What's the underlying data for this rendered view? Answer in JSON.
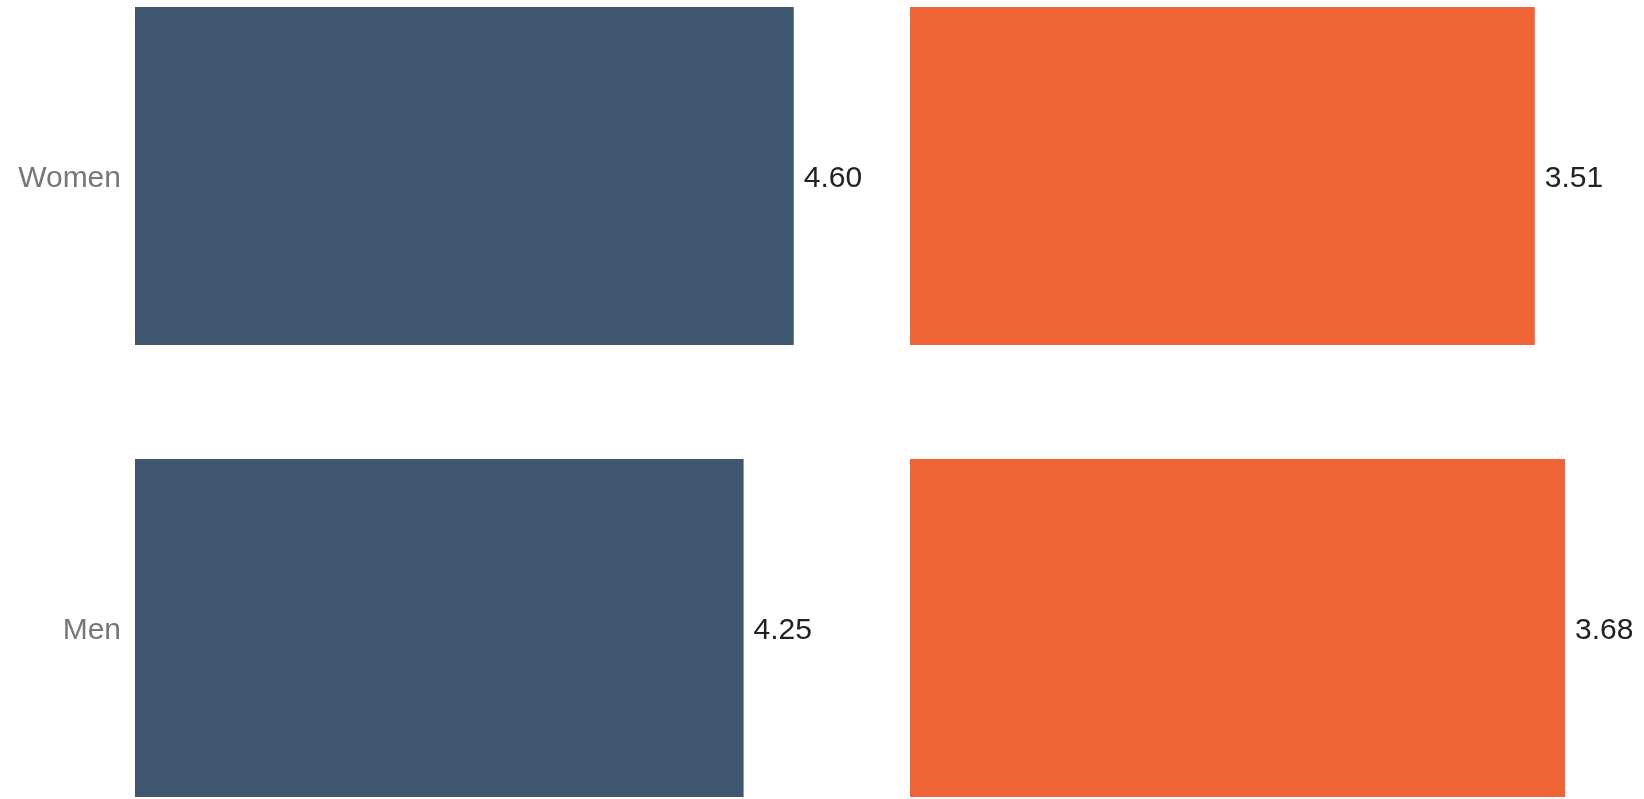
{
  "chart_data": [
    {
      "type": "bar",
      "orientation": "horizontal",
      "categories": [
        "Women",
        "Men"
      ],
      "values": [
        4.6,
        4.25
      ],
      "value_labels": [
        "4.60",
        "4.25"
      ],
      "color": "#3f5670",
      "tick_labels": "y"
    },
    {
      "type": "bar",
      "orientation": "horizontal",
      "categories": [
        null,
        null
      ],
      "values": [
        3.51,
        3.68
      ],
      "value_labels": [
        "3.51",
        "3.68"
      ],
      "color": "#f06436",
      "tick_labels": false
    }
  ]
}
